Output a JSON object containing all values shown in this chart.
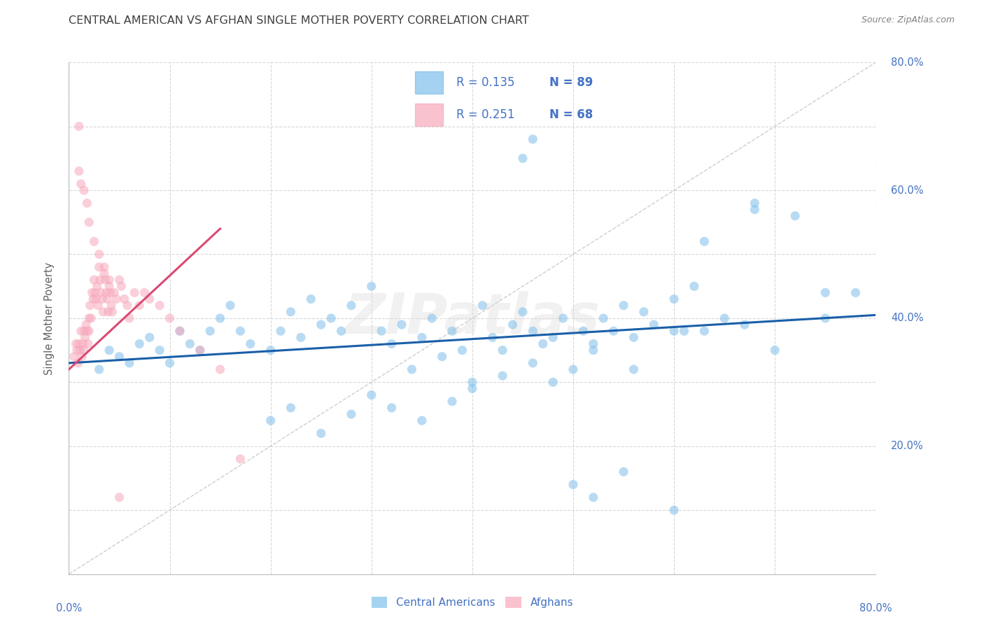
{
  "title": "CENTRAL AMERICAN VS AFGHAN SINGLE MOTHER POVERTY CORRELATION CHART",
  "source": "Source: ZipAtlas.com",
  "ylabel": "Single Mother Poverty",
  "xlim": [
    0.0,
    0.8
  ],
  "ylim": [
    0.0,
    0.8
  ],
  "background_color": "#ffffff",
  "grid_color": "#d0d0d0",
  "blue_color": "#7fbfea",
  "pink_color": "#f7a8bb",
  "trend_blue": "#1a5fa8",
  "trend_pink": "#d94a72",
  "trend_diagonal_color": "#c8c8c8",
  "watermark_text": "ZIPatlas",
  "watermark_color": "#d8d8d8",
  "legend_R1": "R = 0.135",
  "legend_N1": "N = 89",
  "legend_R2": "R = 0.251",
  "legend_N2": "N = 68",
  "legend_label1": "Central Americans",
  "legend_label2": "Afghans",
  "axis_label_color": "#4472c4",
  "title_color": "#404040",
  "source_color": "#808080",
  "ylabel_color": "#606060",
  "blue_x": [
    0.03,
    0.04,
    0.05,
    0.06,
    0.07,
    0.08,
    0.09,
    0.1,
    0.11,
    0.12,
    0.13,
    0.14,
    0.15,
    0.16,
    0.17,
    0.18,
    0.2,
    0.21,
    0.22,
    0.23,
    0.24,
    0.25,
    0.26,
    0.27,
    0.28,
    0.3,
    0.31,
    0.32,
    0.33,
    0.34,
    0.35,
    0.36,
    0.37,
    0.38,
    0.39,
    0.4,
    0.41,
    0.42,
    0.43,
    0.44,
    0.45,
    0.46,
    0.47,
    0.48,
    0.49,
    0.5,
    0.51,
    0.52,
    0.53,
    0.54,
    0.55,
    0.56,
    0.57,
    0.58,
    0.6,
    0.61,
    0.62,
    0.63,
    0.65,
    0.67,
    0.68,
    0.7,
    0.72,
    0.75,
    0.78,
    0.45,
    0.46,
    0.5,
    0.52,
    0.55,
    0.6,
    0.63,
    0.68,
    0.75,
    0.2,
    0.22,
    0.25,
    0.28,
    0.3,
    0.32,
    0.35,
    0.38,
    0.4,
    0.43,
    0.46,
    0.48,
    0.52,
    0.56,
    0.6
  ],
  "blue_y": [
    0.32,
    0.35,
    0.34,
    0.33,
    0.36,
    0.37,
    0.35,
    0.33,
    0.38,
    0.36,
    0.35,
    0.38,
    0.4,
    0.42,
    0.38,
    0.36,
    0.35,
    0.38,
    0.41,
    0.37,
    0.43,
    0.39,
    0.4,
    0.38,
    0.42,
    0.45,
    0.38,
    0.36,
    0.39,
    0.32,
    0.37,
    0.4,
    0.34,
    0.38,
    0.35,
    0.3,
    0.42,
    0.37,
    0.35,
    0.39,
    0.41,
    0.38,
    0.36,
    0.37,
    0.4,
    0.32,
    0.38,
    0.36,
    0.4,
    0.38,
    0.42,
    0.37,
    0.41,
    0.39,
    0.43,
    0.38,
    0.45,
    0.38,
    0.4,
    0.39,
    0.57,
    0.35,
    0.56,
    0.4,
    0.44,
    0.65,
    0.68,
    0.14,
    0.12,
    0.16,
    0.1,
    0.52,
    0.58,
    0.44,
    0.24,
    0.26,
    0.22,
    0.25,
    0.28,
    0.26,
    0.24,
    0.27,
    0.29,
    0.31,
    0.33,
    0.3,
    0.35,
    0.32,
    0.38
  ],
  "pink_x": [
    0.005,
    0.007,
    0.008,
    0.009,
    0.01,
    0.01,
    0.011,
    0.012,
    0.013,
    0.014,
    0.015,
    0.015,
    0.016,
    0.017,
    0.018,
    0.019,
    0.02,
    0.02,
    0.021,
    0.022,
    0.023,
    0.024,
    0.025,
    0.026,
    0.027,
    0.028,
    0.029,
    0.03,
    0.031,
    0.032,
    0.033,
    0.034,
    0.035,
    0.036,
    0.037,
    0.038,
    0.039,
    0.04,
    0.041,
    0.042,
    0.043,
    0.045,
    0.047,
    0.05,
    0.052,
    0.055,
    0.058,
    0.06,
    0.065,
    0.07,
    0.075,
    0.08,
    0.09,
    0.1,
    0.11,
    0.13,
    0.15,
    0.17,
    0.01,
    0.012,
    0.015,
    0.018,
    0.02,
    0.025,
    0.03,
    0.035,
    0.04,
    0.05
  ],
  "pink_y": [
    0.34,
    0.36,
    0.35,
    0.33,
    0.7,
    0.36,
    0.35,
    0.38,
    0.34,
    0.36,
    0.38,
    0.35,
    0.37,
    0.39,
    0.38,
    0.36,
    0.4,
    0.38,
    0.42,
    0.4,
    0.44,
    0.43,
    0.46,
    0.44,
    0.43,
    0.45,
    0.42,
    0.48,
    0.46,
    0.44,
    0.43,
    0.41,
    0.47,
    0.46,
    0.44,
    0.43,
    0.41,
    0.45,
    0.44,
    0.42,
    0.41,
    0.44,
    0.43,
    0.46,
    0.45,
    0.43,
    0.42,
    0.4,
    0.44,
    0.42,
    0.44,
    0.43,
    0.42,
    0.4,
    0.38,
    0.35,
    0.32,
    0.18,
    0.63,
    0.61,
    0.6,
    0.58,
    0.55,
    0.52,
    0.5,
    0.48,
    0.46,
    0.12
  ]
}
